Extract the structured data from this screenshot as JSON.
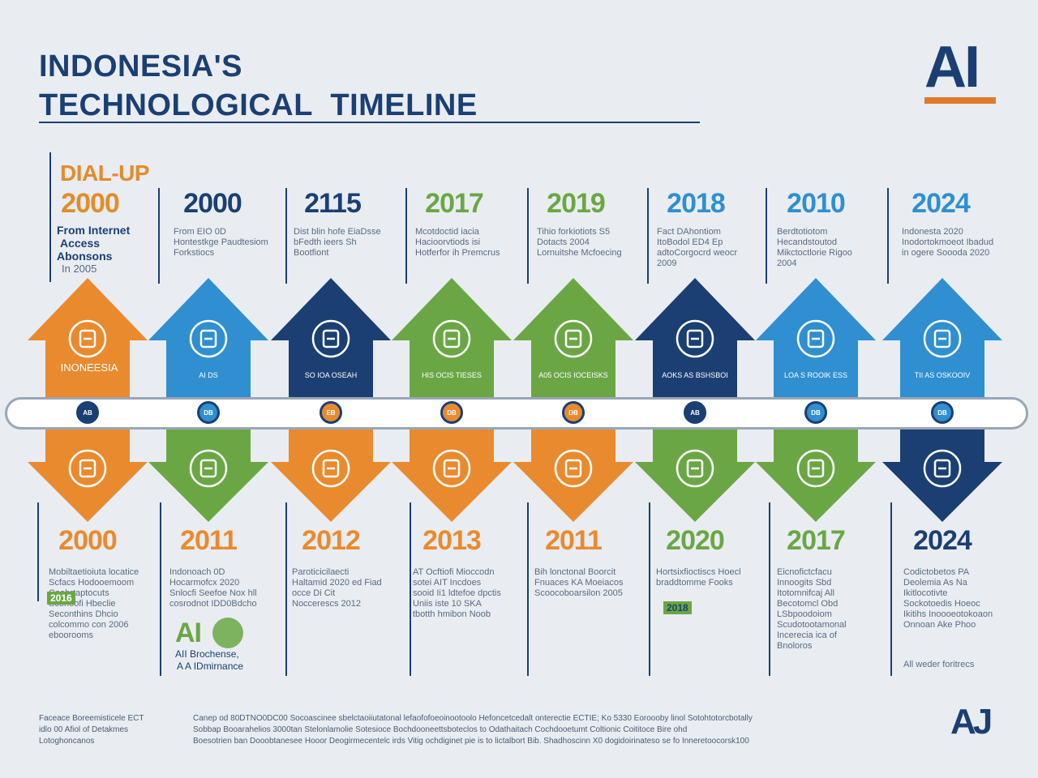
{
  "title": {
    "line1": "INDONESIA'S",
    "line2": "TECHNOLOGICAL  TIMELINE"
  },
  "logo": {
    "text": "AI",
    "accent": "#e07a2a"
  },
  "colors": {
    "navy": "#1b3f73",
    "orange": "#ea8a2e",
    "blue": "#2f8fd0",
    "green": "#6aa744",
    "background": "#e9edf2"
  },
  "top_row": {
    "dial_label": "DIAL-UP",
    "first": {
      "year": "2000",
      "heading": [
        "From Internet",
        "Access",
        "Abonsons"
      ],
      "sub": "In 2005"
    },
    "years": [
      "2000",
      "2115",
      "2017",
      "2019",
      "2018",
      "2010",
      "2024"
    ],
    "year_colors": [
      "#1b3f73",
      "#1b3f73",
      "#6aa744",
      "#6aa744",
      "#2f8fd0",
      "#2f8fd0",
      "#2f8fd0"
    ],
    "notes": [
      "From EIO 0D Hontestkge Paudtesiom Forkstiocs",
      "Dist blin hofe EiaDsse bFedth ieers Sh Bootfiont",
      "Mcotdoctid iacia Hacioorvtiods isi Hotferfor ih Premcrus",
      "Tihio forkiotiots S5 Dotacts 2004 Lornuitshe Mcfoecing",
      "Fact DAhontiom ItoBodol ED4 Ep adtoCorgocrd weocr 2009",
      "Berdtotiotom Hecandstoutod Mikctoctlorie Rigoo 2004",
      "Indonesta 2020 Inodortokmoeot Ibadud in ogere Soooda 2020"
    ]
  },
  "indonesia_label": "INONEESIA",
  "top_arrows": [
    {
      "color": "#ea8a2e",
      "icon": "antenna-icon",
      "label": ""
    },
    {
      "color": "#2f8fd0",
      "icon": "wifi-ai-icon",
      "label": "AI  DS"
    },
    {
      "color": "#1b3f73",
      "icon": "robot-icon",
      "label": "SO  IOA  OSEAH"
    },
    {
      "color": "#6aa744",
      "icon": "globe-icon",
      "label": "HIS  OCIS  TIESES"
    },
    {
      "color": "#6aa744",
      "icon": "lightbulb-icon",
      "label": "A05  OCIS  IOCEISKS"
    },
    {
      "color": "#1b3f73",
      "icon": "globe-network-icon",
      "label": "AOKS  AS  BSHSBOI"
    },
    {
      "color": "#2f8fd0",
      "icon": "person-bulb-icon",
      "label": "LOA  S  ROOIK  ESS"
    },
    {
      "color": "#2f8fd0",
      "icon": "user-badge-icon",
      "label": "TII  AS  OSKOOIV"
    }
  ],
  "nodes": [
    {
      "color": "#1b3f73",
      "label": "AB"
    },
    {
      "color": "#2f8fd0",
      "label": "DB"
    },
    {
      "color": "#ea8a2e",
      "label": "EB"
    },
    {
      "color": "#ea8a2e",
      "label": "DB"
    },
    {
      "color": "#ea8a2e",
      "label": "DB"
    },
    {
      "color": "#1b3f73",
      "label": "AB"
    },
    {
      "color": "#2f8fd0",
      "label": "DB"
    },
    {
      "color": "#2f8fd0",
      "label": "DB"
    }
  ],
  "bottom_arrows": [
    {
      "color": "#ea8a2e",
      "icon": "server-tower-icon"
    },
    {
      "color": "#6aa744",
      "icon": "smartphone-icon"
    },
    {
      "color": "#ea8a2e",
      "icon": "robot-globe-icon"
    },
    {
      "color": "#ea8a2e",
      "icon": "datacenter-icon"
    },
    {
      "color": "#ea8a2e",
      "icon": "server-stack-icon"
    },
    {
      "color": "#6aa744",
      "icon": "wifi-device-icon"
    },
    {
      "color": "#6aa744",
      "icon": "robot-head-icon"
    },
    {
      "color": "#1b3f73",
      "icon": "people-icon"
    }
  ],
  "bottom_row": {
    "years": [
      "2000",
      "2011",
      "2012",
      "2013",
      "2011",
      "2020",
      "2017",
      "2024"
    ],
    "year_colors": [
      "#ea8a2e",
      "#ea8a2e",
      "#ea8a2e",
      "#ea8a2e",
      "#ea8a2e",
      "#6aa744",
      "#6aa744",
      "#1b3f73"
    ],
    "notes": [
      "Mobiltaetioiuta locatice Scfacs Hodooemoom Coohrtaptocuts Sconoofi Hbeclie Seconthins Dhcio colcommo con 2006 eboorooms",
      "Indonoach 0D Hocarmofcx 2020 Snlocfi Seefoe Nox hll cosrodnot IDD0Bdcho",
      "Paroticicilaecti Haltamid 2020 ed Fiad occe Di Cit Noccerescs 2012",
      "AT Ocftiofi Mioccodn sotei AIT Incdoes sooid Ii1 ldtefoe dpctis Uniis iste  10 SKA tbotth hmibon Noob",
      "Bih lonctonal Boorcit Fnuaces KA Moeiacos Scoocoboarsilon 2005",
      "Hortsixfioctiscs Hoecl braddtomme Fooks",
      "Eicnofictcfacu Innoogits Sbd Itotomnifcaj All Becotomcl Obd LSbpoodoiom Scudotootamonal Incerecia ica of Bnoloros",
      "Codictobetos PA Deolemia As Na Ikitlocotivte Sockotoedis Hoeoc Ikitihs Inoooeotokoaon Onnoan Ake Phoo"
    ],
    "extra": {
      "ai_mark": "AI",
      "ai_caption": [
        "AII Brochense,",
        "A A IDmirnance"
      ],
      "badge_2016": "2016",
      "badge_2018": "2018",
      "ai_last": "All weder foritrecs"
    }
  },
  "footer": {
    "left": [
      "Faceace Boreemisticele ECT",
      "idlo 00 Afiol of Detakmes",
      "Lotoghoncanos"
    ],
    "middle": [
      "Canep od 80DTNO0DC00 Socoascinee sbelctaoiiutatonal lefaofofoeoinootoolo Hefoncetcedalt onterectie ECTIE; Ko 5330 Eoroooby linol Sotohtotorcbotally",
      "Sobbap Booarahelios 3000tan Stelonlamolie Sotesioce Bochdooneettsboteclos to Odathaitach Cochdooetumt Coltionic Coititoce Bire ohd",
      "Boesotrien ban Dooobtanesee Hooor Deogirmecentelc irds Vitig ochdiginet pie is to lictalbort Bib. Shadhoscinn X0 dogidoirinateso se fo Inneretoocorsk100"
    ],
    "logo": "AJ"
  }
}
